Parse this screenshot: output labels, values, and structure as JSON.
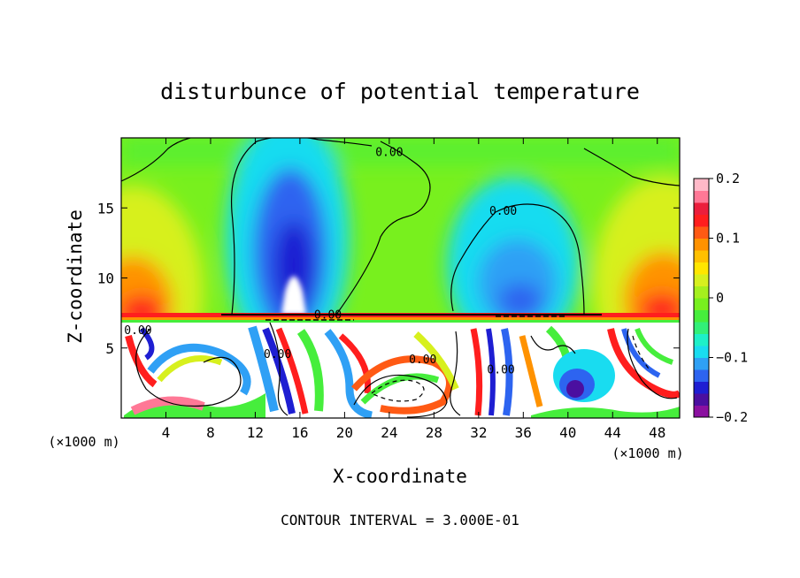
{
  "chart_data": {
    "type": "heatmap",
    "title": "disturbunce of potential temperature",
    "xlabel": "X-coordinate",
    "ylabel": "Z-coordinate",
    "x_unit": "(×1000 m)",
    "y_unit": "(×1000 m)",
    "footer": "CONTOUR INTERVAL = 3.000E-01",
    "xlim": [
      0,
      50
    ],
    "ylim": [
      0,
      20
    ],
    "x_ticks": [
      {
        "value": 4,
        "label": "4"
      },
      {
        "value": 8,
        "label": "8"
      },
      {
        "value": 12,
        "label": "12"
      },
      {
        "value": 16,
        "label": "16"
      },
      {
        "value": 20,
        "label": "20"
      },
      {
        "value": 24,
        "label": "24"
      },
      {
        "value": 28,
        "label": "28"
      },
      {
        "value": 32,
        "label": "32"
      },
      {
        "value": 36,
        "label": "36"
      },
      {
        "value": 40,
        "label": "40"
      },
      {
        "value": 44,
        "label": "44"
      },
      {
        "value": 48,
        "label": "48"
      }
    ],
    "y_ticks": [
      {
        "value": 5,
        "label": "5"
      },
      {
        "value": 10,
        "label": "10"
      },
      {
        "value": 15,
        "label": "15"
      }
    ],
    "colorbar": {
      "min": -0.2,
      "max": 0.2,
      "ticks": [
        {
          "value": 0.2,
          "label": "0.2"
        },
        {
          "value": 0.1,
          "label": "0.1"
        },
        {
          "value": 0,
          "label": "0"
        },
        {
          "value": -0.1,
          "label": "−0.1"
        },
        {
          "value": -0.2,
          "label": "−0.2"
        }
      ],
      "colors": [
        "#8b10a0",
        "#4b0fa0",
        "#1e1ed2",
        "#2d64f0",
        "#2fa0f5",
        "#19dcf0",
        "#1ef0c8",
        "#32f078",
        "#46ee3c",
        "#78f01e",
        "#a5f01e",
        "#d7f01e",
        "#ffe600",
        "#ffc000",
        "#ff9200",
        "#ff5a14",
        "#ff1e1e",
        "#eb1e3c",
        "#ff7896",
        "#ffb9c8"
      ]
    },
    "contour_labels": [
      {
        "text": "0.00",
        "x": 24.0,
        "y": 18.7
      },
      {
        "text": "0.00",
        "x": 34.2,
        "y": 14.5
      },
      {
        "text": "0.00",
        "x": 18.5,
        "y": 7.1
      },
      {
        "text": "0.00",
        "x": 27.0,
        "y": 3.9
      },
      {
        "text": "0.00",
        "x": 14.0,
        "y": 4.3
      },
      {
        "text": "0.00",
        "x": 34.0,
        "y": 3.2
      },
      {
        "text": "0.00",
        "x": 1.5,
        "y": 6.0
      }
    ],
    "features": [
      {
        "kind": "cold-anomaly",
        "x_center": 15.5,
        "top": 20,
        "bottom": 7.5
      },
      {
        "kind": "cold-anomaly",
        "x_center": 35.5,
        "top": 17.5,
        "bottom": 7.5
      },
      {
        "kind": "warm-anomaly",
        "x_center": 2.5,
        "top": 13,
        "bottom": 7.5
      },
      {
        "kind": "warm-anomaly",
        "x_center": 47.5,
        "top": 13,
        "bottom": 7.5
      },
      {
        "kind": "interface",
        "z": 7.4
      }
    ]
  }
}
